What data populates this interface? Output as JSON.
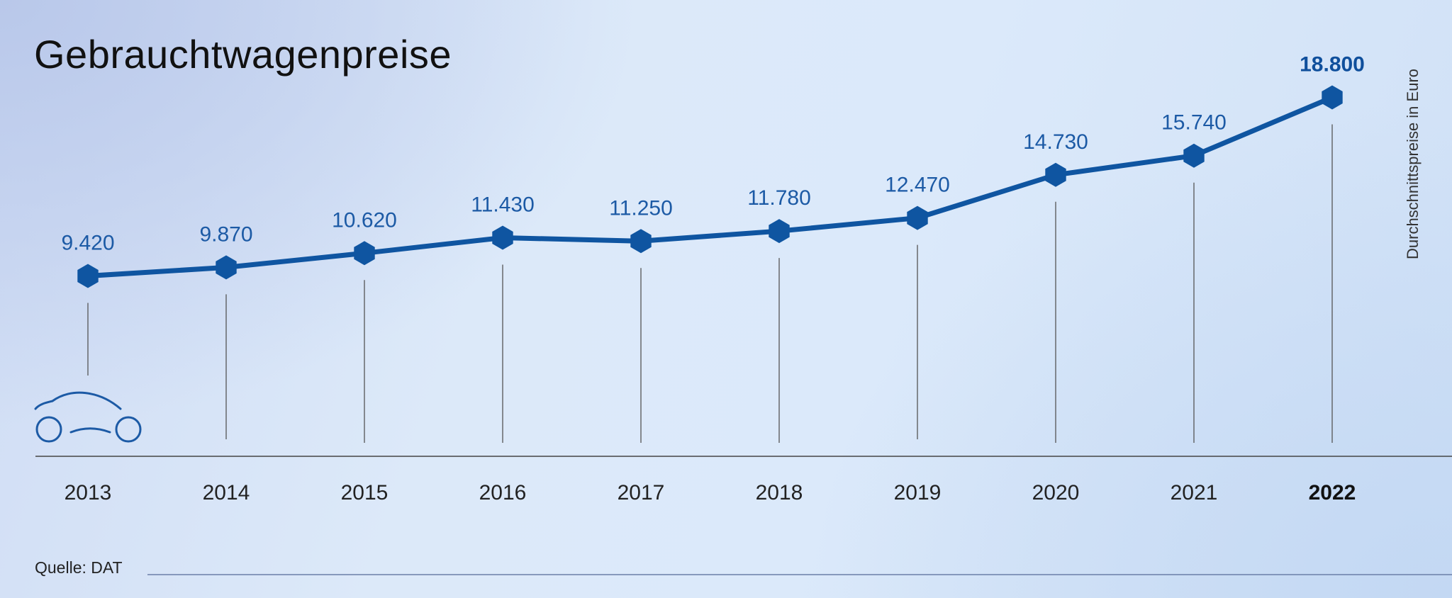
{
  "chart_data": {
    "type": "line",
    "title": "Gebrauchtwagenpreise",
    "ylabel": "Durchschnittspreise in Euro",
    "source": "Quelle: DAT",
    "categories": [
      "2013",
      "2014",
      "2015",
      "2016",
      "2017",
      "2018",
      "2019",
      "2020",
      "2021",
      "2022"
    ],
    "values": [
      9420,
      9870,
      10620,
      11430,
      11250,
      11780,
      12470,
      14730,
      15740,
      18800
    ],
    "value_labels": [
      "9.420",
      "9.870",
      "10.620",
      "11.430",
      "11.250",
      "11.780",
      "12.470",
      "14.730",
      "15.740",
      "18.800"
    ],
    "highlight_index": 9,
    "grid": false,
    "legend": "none",
    "colors": {
      "line": "#0f55a1",
      "marker": "#0f55a1",
      "guide": "#555555",
      "axis": "#444444"
    }
  },
  "icons": {
    "decoration": "car-outline-icon"
  }
}
